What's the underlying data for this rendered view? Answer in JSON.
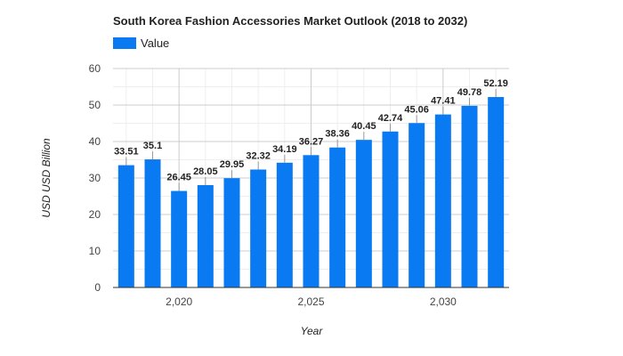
{
  "chart_data": {
    "type": "bar",
    "title": "South Korea Fashion Accessories Market Outlook (2018 to 2032)",
    "xlabel": "Year",
    "ylabel": "USD USD Billion",
    "x": [
      2018,
      2019,
      2020,
      2021,
      2022,
      2023,
      2024,
      2025,
      2026,
      2027,
      2028,
      2029,
      2030,
      2031,
      2032
    ],
    "x_tick_values": [
      2020,
      2025,
      2030
    ],
    "x_tick_labels": [
      "2,020",
      "2,025",
      "2,030"
    ],
    "series": [
      {
        "name": "Value",
        "color": "#0a7af2",
        "values": [
          33.51,
          35.1,
          26.45,
          28.05,
          29.95,
          32.32,
          34.19,
          36.27,
          38.36,
          40.45,
          42.74,
          45.06,
          47.41,
          49.78,
          52.19
        ],
        "labels": [
          "33.51",
          "35.1",
          "26.45",
          "28.05",
          "29.95",
          "32.32",
          "34.19",
          "36.27",
          "38.36",
          "40.45",
          "42.74",
          "45.06",
          "47.41",
          "49.78",
          "52.19"
        ]
      }
    ],
    "ylim": [
      0,
      60
    ],
    "y_ticks": [
      "0",
      "10",
      "20",
      "30",
      "40",
      "50",
      "60"
    ],
    "grid": true,
    "legend": "top-left"
  }
}
